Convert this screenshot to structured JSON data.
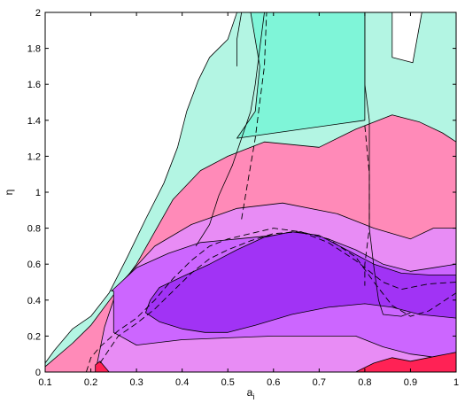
{
  "chart_data": {
    "type": "contour",
    "title": "",
    "xlabel": "a",
    "xlabel_subscript": "i",
    "ylabel": "η",
    "xlim": [
      0.1,
      1.0
    ],
    "ylim": [
      0,
      2
    ],
    "xticks": [
      "0.1",
      "0.2",
      "0.3",
      "0.4",
      "0.5",
      "0.6",
      "0.7",
      "0.8",
      "0.9",
      "1"
    ],
    "yticks": [
      "0",
      "0.2",
      "0.4",
      "0.6",
      "0.8",
      "1",
      "1.2",
      "1.4",
      "1.6",
      "1.8",
      "2"
    ],
    "grid": false,
    "legend": "none",
    "regions": [
      {
        "color": "#b3f5e3",
        "points": [
          [
            0.1,
            0.05
          ],
          [
            0.12,
            0.12
          ],
          [
            0.16,
            0.24
          ],
          [
            0.2,
            0.31
          ],
          [
            0.24,
            0.44
          ],
          [
            0.28,
            0.64
          ],
          [
            0.32,
            0.85
          ],
          [
            0.36,
            1.05
          ],
          [
            0.39,
            1.25
          ],
          [
            0.41,
            1.45
          ],
          [
            0.435,
            1.62
          ],
          [
            0.46,
            1.75
          ],
          [
            0.5,
            1.85
          ],
          [
            0.52,
            2.0
          ],
          [
            0.86,
            2.0
          ],
          [
            0.86,
            1.75
          ],
          [
            0.905,
            1.72
          ],
          [
            0.925,
            2.0
          ],
          [
            1.0,
            2.0
          ],
          [
            1.0,
            0
          ],
          [
            0.1,
            0
          ]
        ]
      },
      {
        "color": "#7ff5d8",
        "points": [
          [
            0.55,
            2.0
          ],
          [
            0.62,
            2.0
          ],
          [
            0.8,
            2.0
          ],
          [
            0.8,
            1.4
          ],
          [
            0.52,
            1.3
          ],
          [
            0.56,
            1.45
          ],
          [
            0.57,
            1.7
          ]
        ]
      },
      {
        "color": "#ff8ab8",
        "points": [
          [
            0.1,
            0
          ],
          [
            0.1,
            0.03
          ],
          [
            0.16,
            0.16
          ],
          [
            0.2,
            0.26
          ],
          [
            0.25,
            0.43
          ],
          [
            0.3,
            0.6
          ],
          [
            0.34,
            0.78
          ],
          [
            0.38,
            0.96
          ],
          [
            0.44,
            1.12
          ],
          [
            0.5,
            1.2
          ],
          [
            0.58,
            1.28
          ],
          [
            0.7,
            1.25
          ],
          [
            0.78,
            1.35
          ],
          [
            0.86,
            1.43
          ],
          [
            0.92,
            1.39
          ],
          [
            0.97,
            1.33
          ],
          [
            1.0,
            1.28
          ],
          [
            1.0,
            0
          ]
        ]
      },
      {
        "color": "#e88cf5",
        "points": [
          [
            0.21,
            0
          ],
          [
            0.23,
            0.25
          ],
          [
            0.26,
            0.48
          ],
          [
            0.34,
            0.7
          ],
          [
            0.42,
            0.82
          ],
          [
            0.52,
            0.91
          ],
          [
            0.62,
            0.94
          ],
          [
            0.74,
            0.88
          ],
          [
            0.82,
            0.8
          ],
          [
            0.9,
            0.74
          ],
          [
            0.95,
            0.8
          ],
          [
            1.0,
            0.8
          ],
          [
            1.0,
            0
          ],
          [
            0.21,
            0
          ]
        ]
      },
      {
        "color": "#cc66ff",
        "points": [
          [
            0.245,
            0.45
          ],
          [
            0.3,
            0.58
          ],
          [
            0.37,
            0.66
          ],
          [
            0.44,
            0.72
          ],
          [
            0.52,
            0.74
          ],
          [
            0.6,
            0.76
          ],
          [
            0.66,
            0.78
          ],
          [
            0.72,
            0.74
          ],
          [
            0.78,
            0.68
          ],
          [
            0.84,
            0.6
          ],
          [
            0.9,
            0.56
          ],
          [
            0.95,
            0.58
          ],
          [
            1.0,
            0.6
          ],
          [
            1.0,
            0.08
          ],
          [
            0.96,
            0.08
          ],
          [
            0.9,
            0.1
          ],
          [
            0.84,
            0.14
          ],
          [
            0.78,
            0.2
          ],
          [
            0.7,
            0.2
          ],
          [
            0.6,
            0.2
          ],
          [
            0.5,
            0.19
          ],
          [
            0.4,
            0.18
          ],
          [
            0.3,
            0.15
          ],
          [
            0.25,
            0.22
          ],
          [
            0.25,
            0.45
          ]
        ]
      },
      {
        "color": "#a133f5",
        "points": [
          [
            0.33,
            0.4
          ],
          [
            0.35,
            0.47
          ],
          [
            0.4,
            0.53
          ],
          [
            0.46,
            0.6
          ],
          [
            0.52,
            0.68
          ],
          [
            0.58,
            0.75
          ],
          [
            0.64,
            0.78
          ],
          [
            0.7,
            0.76
          ],
          [
            0.76,
            0.68
          ],
          [
            0.82,
            0.6
          ],
          [
            0.88,
            0.55
          ],
          [
            0.94,
            0.54
          ],
          [
            1.0,
            0.54
          ],
          [
            1.0,
            0.3
          ],
          [
            0.92,
            0.32
          ],
          [
            0.86,
            0.36
          ],
          [
            0.8,
            0.38
          ],
          [
            0.72,
            0.36
          ],
          [
            0.64,
            0.32
          ],
          [
            0.56,
            0.26
          ],
          [
            0.5,
            0.22
          ],
          [
            0.45,
            0.22
          ],
          [
            0.4,
            0.24
          ],
          [
            0.35,
            0.28
          ],
          [
            0.32,
            0.33
          ]
        ]
      },
      {
        "color": "#ff2255",
        "points": [
          [
            0.21,
            0.04
          ],
          [
            0.22,
            0.06
          ],
          [
            0.23,
            0.03
          ],
          [
            0.24,
            0.0
          ],
          [
            0.21,
            0.0
          ]
        ]
      },
      {
        "color": "#ff2255",
        "points": [
          [
            0.78,
            0
          ],
          [
            0.82,
            0.05
          ],
          [
            0.86,
            0.08
          ],
          [
            0.9,
            0.06
          ],
          [
            0.96,
            0.09
          ],
          [
            1.0,
            0.11
          ],
          [
            1.0,
            0
          ],
          [
            0.78,
            0
          ]
        ]
      }
    ],
    "dashed_curves": [
      {
        "points": [
          [
            0.19,
            0.0
          ],
          [
            0.2,
            0.08
          ],
          [
            0.22,
            0.14
          ],
          [
            0.26,
            0.23
          ],
          [
            0.3,
            0.3
          ],
          [
            0.34,
            0.4
          ],
          [
            0.38,
            0.52
          ],
          [
            0.42,
            0.62
          ],
          [
            0.46,
            0.7
          ],
          [
            0.5,
            0.74
          ],
          [
            0.55,
            0.77
          ],
          [
            0.6,
            0.8
          ],
          [
            0.66,
            0.78
          ],
          [
            0.72,
            0.72
          ],
          [
            0.78,
            0.62
          ],
          [
            0.84,
            0.5
          ],
          [
            0.88,
            0.46
          ],
          [
            0.94,
            0.49
          ],
          [
            1.0,
            0.5
          ]
        ]
      },
      {
        "points": [
          [
            0.22,
            0.05
          ],
          [
            0.26,
            0.2
          ],
          [
            0.3,
            0.27
          ],
          [
            0.34,
            0.35
          ],
          [
            0.38,
            0.45
          ],
          [
            0.42,
            0.55
          ],
          [
            0.46,
            0.63
          ],
          [
            0.5,
            0.68
          ],
          [
            0.55,
            0.73
          ],
          [
            0.6,
            0.77
          ],
          [
            0.66,
            0.78
          ],
          [
            0.72,
            0.74
          ],
          [
            0.78,
            0.64
          ],
          [
            0.82,
            0.5
          ],
          [
            0.86,
            0.37
          ],
          [
            0.9,
            0.31
          ],
          [
            0.94,
            0.34
          ],
          [
            1.0,
            0.44
          ]
        ]
      },
      {
        "points": [
          [
            0.53,
            0.85
          ],
          [
            0.54,
            1.0
          ],
          [
            0.55,
            1.15
          ],
          [
            0.56,
            1.3
          ],
          [
            0.57,
            1.5
          ],
          [
            0.58,
            1.7
          ],
          [
            0.585,
            2.0
          ]
        ]
      },
      {
        "points": [
          [
            0.8,
            1.37
          ],
          [
            0.81,
            1.1
          ],
          [
            0.81,
            0.8
          ],
          [
            0.8,
            0.6
          ],
          [
            0.8,
            0.48
          ]
        ]
      }
    ],
    "solid_curves": [
      {
        "points": [
          [
            0.58,
            2.0
          ],
          [
            0.57,
            1.8
          ],
          [
            0.56,
            1.6
          ],
          [
            0.55,
            1.45
          ],
          [
            0.53,
            1.3
          ],
          [
            0.51,
            1.15
          ],
          [
            0.48,
            0.98
          ],
          [
            0.46,
            0.82
          ],
          [
            0.43,
            0.7
          ]
        ]
      },
      {
        "points": [
          [
            0.8,
            2.0
          ],
          [
            0.8,
            1.6
          ],
          [
            0.81,
            1.4
          ],
          [
            0.81,
            1.1
          ],
          [
            0.81,
            0.8
          ],
          [
            0.82,
            0.58
          ],
          [
            0.83,
            0.4
          ],
          [
            0.84,
            0.32
          ],
          [
            0.88,
            0.31
          ],
          [
            0.9,
            0.33
          ]
        ]
      },
      {
        "points": [
          [
            0.53,
            2.0
          ],
          [
            0.52,
            1.85
          ],
          [
            0.52,
            1.7
          ]
        ]
      }
    ]
  }
}
